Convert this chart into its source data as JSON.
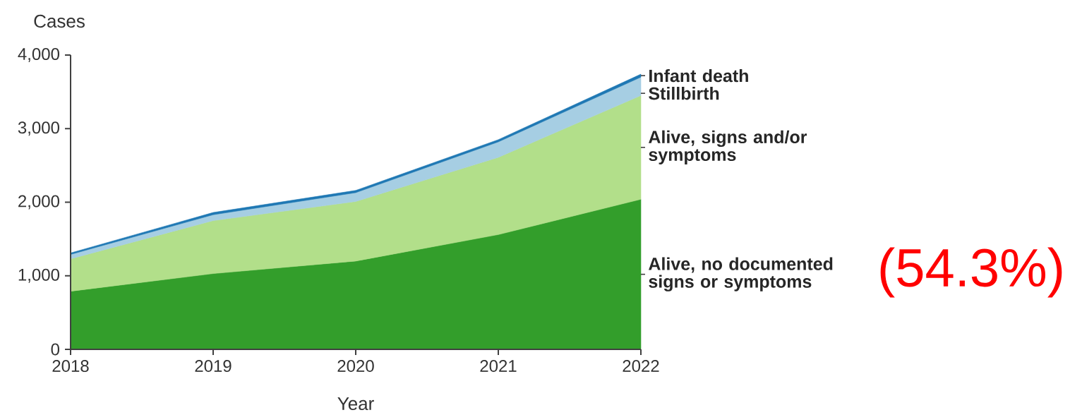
{
  "chart_data": {
    "type": "area",
    "stacked": true,
    "ylabel": "Cases",
    "xlabel": "Year",
    "x": [
      2018,
      2019,
      2020,
      2021,
      2022
    ],
    "series": [
      {
        "name": "Alive, no documented signs or symptoms",
        "color": "#339e2b",
        "values": [
          790,
          1030,
          1200,
          1560,
          2040
        ]
      },
      {
        "name": "Alive, signs and/or symptoms",
        "color": "#b2df8a",
        "values": [
          440,
          720,
          810,
          1050,
          1410
        ]
      },
      {
        "name": "Stillbirth",
        "color": "#a6cee3",
        "values": [
          60,
          80,
          120,
          210,
          250
        ]
      },
      {
        "name": "Infant death",
        "color": "#1f78b4",
        "values": [
          20,
          30,
          30,
          30,
          40
        ]
      }
    ],
    "xlim": [
      2018,
      2022
    ],
    "xticks": [
      2018,
      2019,
      2020,
      2021,
      2022
    ],
    "ylim": [
      0,
      4000
    ],
    "yticks": [
      0,
      {
        "value": 1000,
        "label": "1,000"
      },
      {
        "value": 2000,
        "label": "2,000"
      },
      {
        "value": 3000,
        "label": "3,000"
      },
      {
        "value": 4000,
        "label": "4,000"
      }
    ],
    "annotations": [
      "(54.3%)"
    ]
  }
}
